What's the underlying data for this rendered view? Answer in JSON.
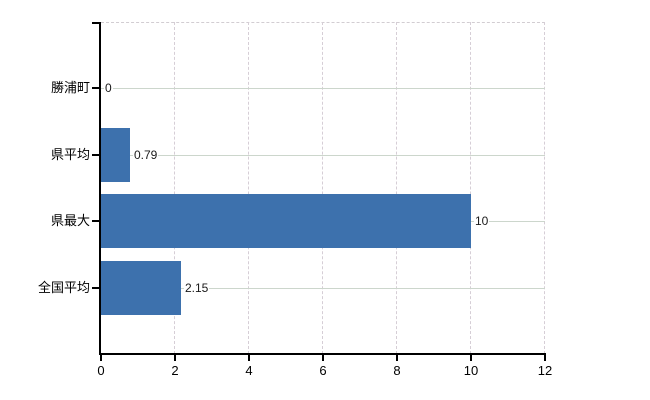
{
  "chart_data": {
    "type": "bar",
    "orientation": "horizontal",
    "title": "",
    "xlabel": "",
    "ylabel": "",
    "categories": [
      "勝浦町",
      "県平均",
      "県最大",
      "全国平均"
    ],
    "values": [
      0,
      0.79,
      10,
      2.15
    ],
    "value_labels": [
      "0",
      "0.79",
      "10",
      "2.15"
    ],
    "xlim": [
      0,
      12
    ],
    "x_ticks": [
      0,
      2,
      4,
      6,
      8,
      10,
      12
    ],
    "x_tick_labels": [
      "0",
      "2",
      "4",
      "6",
      "8",
      "10",
      "12"
    ],
    "grid": true,
    "legend_position": "none",
    "colors": {
      "bar": "#3d71ad",
      "h_gridline": "#ccd6cc",
      "v_gridline": "#d6ced6",
      "top_border": "#d2cdd2",
      "axis": "#000000",
      "tick": "#000000",
      "text": "#000000",
      "value_text": "#1a1a1a",
      "background": "#ffffff"
    }
  }
}
